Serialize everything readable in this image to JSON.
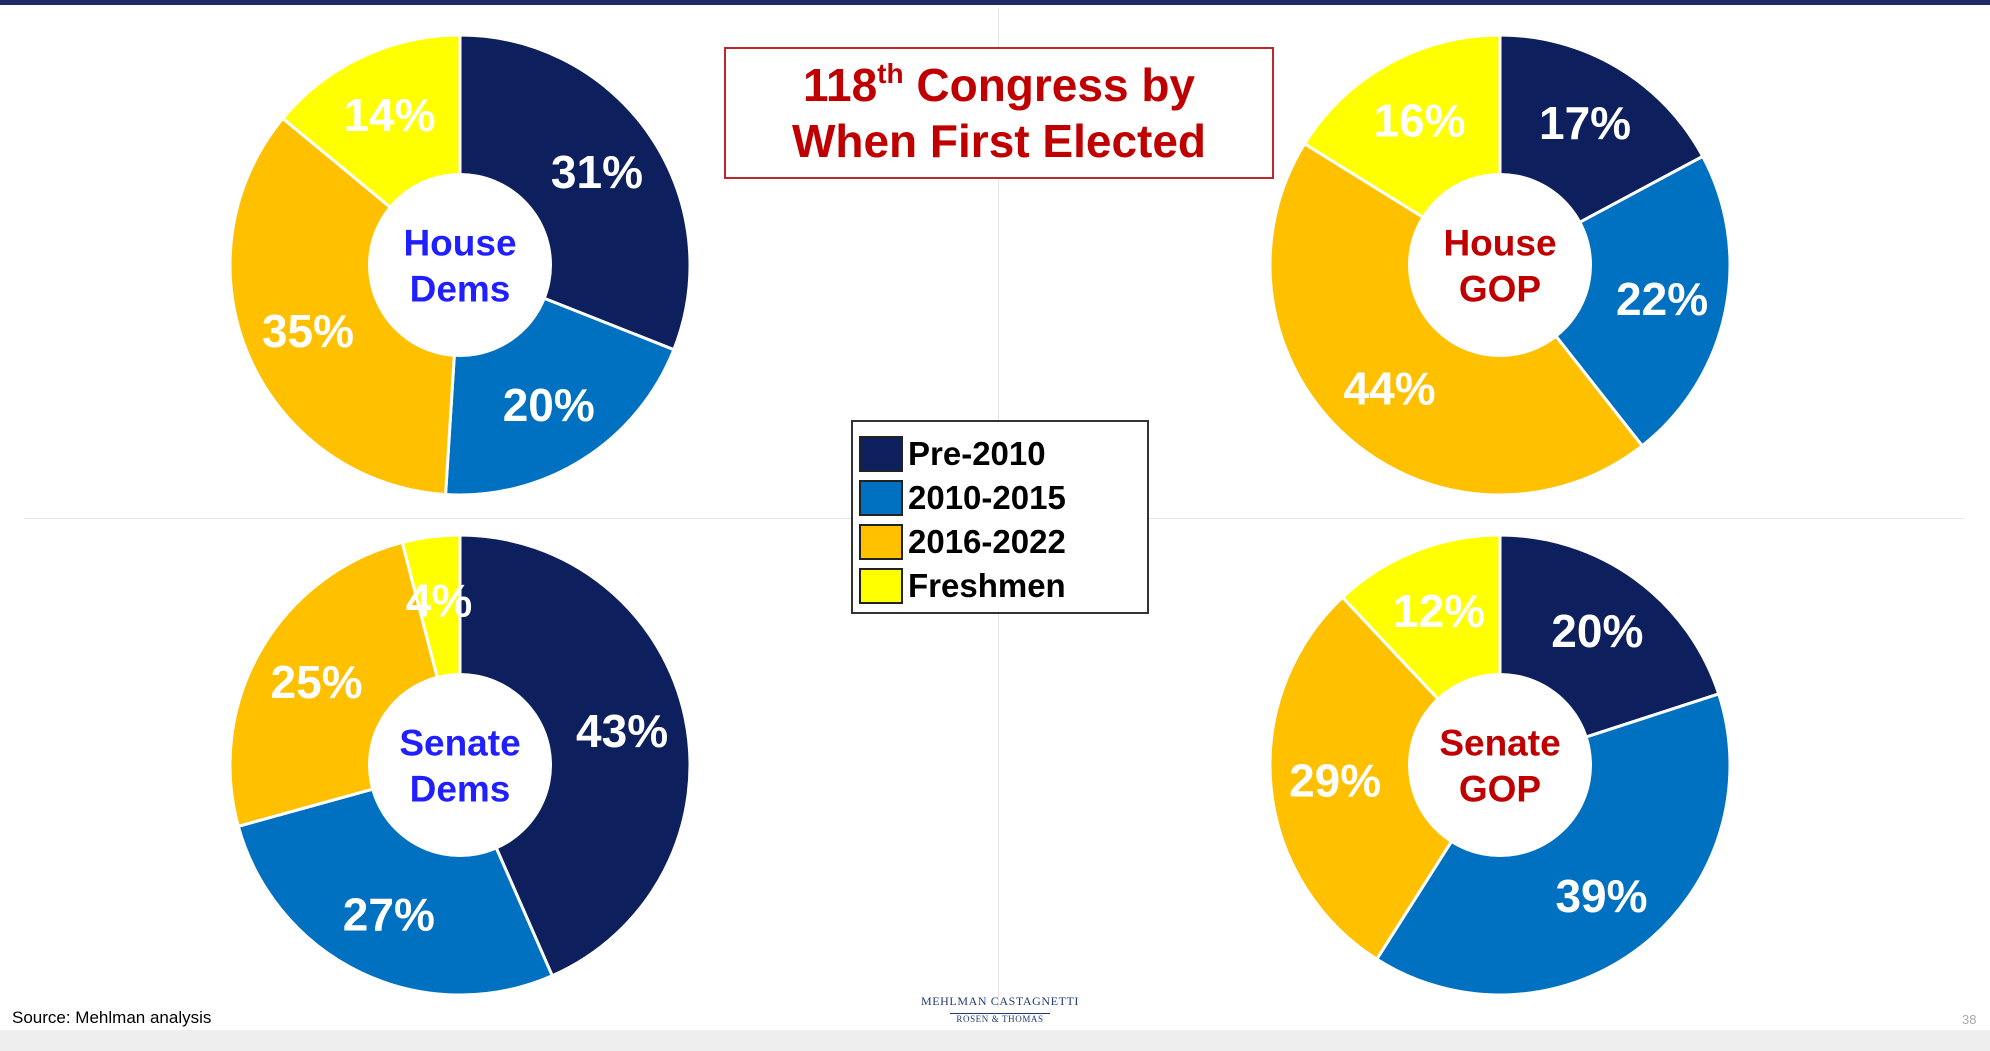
{
  "title": {
    "line1_prefix": "118",
    "line1_sup": "th",
    "line1_suffix": " Congress by",
    "line2": "When First Elected"
  },
  "legend": [
    {
      "label": "Pre-2010",
      "color": "#0d1f5c"
    },
    {
      "label": "2010-2015",
      "color": "#0070c0"
    },
    {
      "label": "2016-2022",
      "color": "#ffc000"
    },
    {
      "label": "Freshmen",
      "color": "#ffff00"
    }
  ],
  "source": "Source: Mehlman analysis",
  "logo": {
    "line1": "MEHLMAN CASTAGNETTI",
    "line2": "ROSEN & THOMAS"
  },
  "page_number": "38",
  "center_label_colors": {
    "dem": "#1f1fff",
    "gop": "#c00000"
  },
  "chart_data": [
    {
      "type": "pie",
      "center_label": [
        "House",
        "Dems"
      ],
      "party": "dem",
      "categories": [
        "Pre-2010",
        "2010-2015",
        "2016-2022",
        "Freshmen"
      ],
      "values": [
        31,
        20,
        35,
        14
      ],
      "data_labels": [
        "31%",
        "20%",
        "35%",
        "14%"
      ]
    },
    {
      "type": "pie",
      "center_label": [
        "House",
        "GOP"
      ],
      "party": "gop",
      "categories": [
        "Pre-2010",
        "2010-2015",
        "2016-2022",
        "Freshmen"
      ],
      "values": [
        17,
        22,
        44,
        16
      ],
      "data_labels": [
        "17%",
        "22%",
        "44%",
        "16%"
      ]
    },
    {
      "type": "pie",
      "center_label": [
        "Senate",
        "Dems"
      ],
      "party": "dem",
      "categories": [
        "Pre-2010",
        "2010-2015",
        "2016-2022",
        "Freshmen"
      ],
      "values": [
        43,
        27,
        25,
        4
      ],
      "data_labels": [
        "43%",
        "27%",
        "25%",
        "4%"
      ]
    },
    {
      "type": "pie",
      "center_label": [
        "Senate",
        "GOP"
      ],
      "party": "gop",
      "categories": [
        "Pre-2010",
        "2010-2015",
        "2016-2022",
        "Freshmen"
      ],
      "values": [
        20,
        39,
        29,
        12
      ],
      "data_labels": [
        "20%",
        "39%",
        "29%",
        "12%"
      ]
    }
  ]
}
